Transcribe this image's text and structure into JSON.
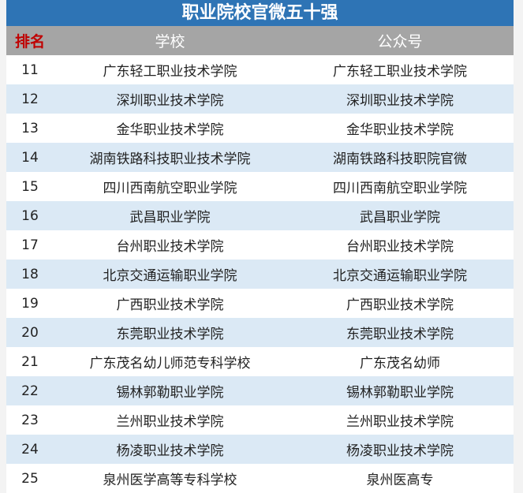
{
  "title": "职业院校官微五十强",
  "colors": {
    "title_bg": "#2e74b5",
    "header_bg": "#a5a5a5",
    "rank_header": "#c00000",
    "stripe": "#dbe9f5"
  },
  "headers": {
    "rank": "排名",
    "school": "学校",
    "account": "公众号"
  },
  "rows": [
    {
      "rank": "11",
      "school": "广东轻工职业技术学院",
      "account": "广东轻工职业技术学院"
    },
    {
      "rank": "12",
      "school": "深圳职业技术学院",
      "account": "深圳职业技术学院"
    },
    {
      "rank": "13",
      "school": "金华职业技术学院",
      "account": "金华职业技术学院"
    },
    {
      "rank": "14",
      "school": "湖南铁路科技职业技术学院",
      "account": "湖南铁路科技职院官微"
    },
    {
      "rank": "15",
      "school": "四川西南航空职业学院",
      "account": "四川西南航空职业学院"
    },
    {
      "rank": "16",
      "school": "武昌职业学院",
      "account": "武昌职业学院"
    },
    {
      "rank": "17",
      "school": "台州职业技术学院",
      "account": "台州职业技术学院"
    },
    {
      "rank": "18",
      "school": "北京交通运输职业学院",
      "account": "北京交通运输职业学院"
    },
    {
      "rank": "19",
      "school": "广西职业技术学院",
      "account": "广西职业技术学院"
    },
    {
      "rank": "20",
      "school": "东莞职业技术学院",
      "account": "东莞职业技术学院"
    },
    {
      "rank": "21",
      "school": "广东茂名幼儿师范专科学校",
      "account": "广东茂名幼师"
    },
    {
      "rank": "22",
      "school": "锡林郭勒职业学院",
      "account": "锡林郭勒职业学院"
    },
    {
      "rank": "23",
      "school": "兰州职业技术学院",
      "account": "兰州职业技术学院"
    },
    {
      "rank": "24",
      "school": "杨凌职业技术学院",
      "account": "杨凌职业技术学院"
    },
    {
      "rank": "25",
      "school": "泉州医学高等专科学校",
      "account": "泉州医高专"
    }
  ]
}
